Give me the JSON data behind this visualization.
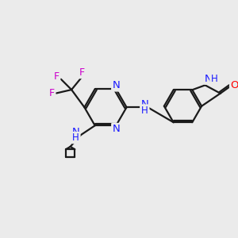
{
  "bg_color": "#ebebeb",
  "bond_color": "#1a1a1a",
  "n_color": "#1a1aff",
  "o_color": "#ff0000",
  "f_color": "#cc00cc",
  "lw": 1.6,
  "figsize": [
    3.0,
    3.0
  ],
  "dpi": 100,
  "xlim": [
    0,
    10
  ],
  "ylim": [
    0,
    10
  ]
}
